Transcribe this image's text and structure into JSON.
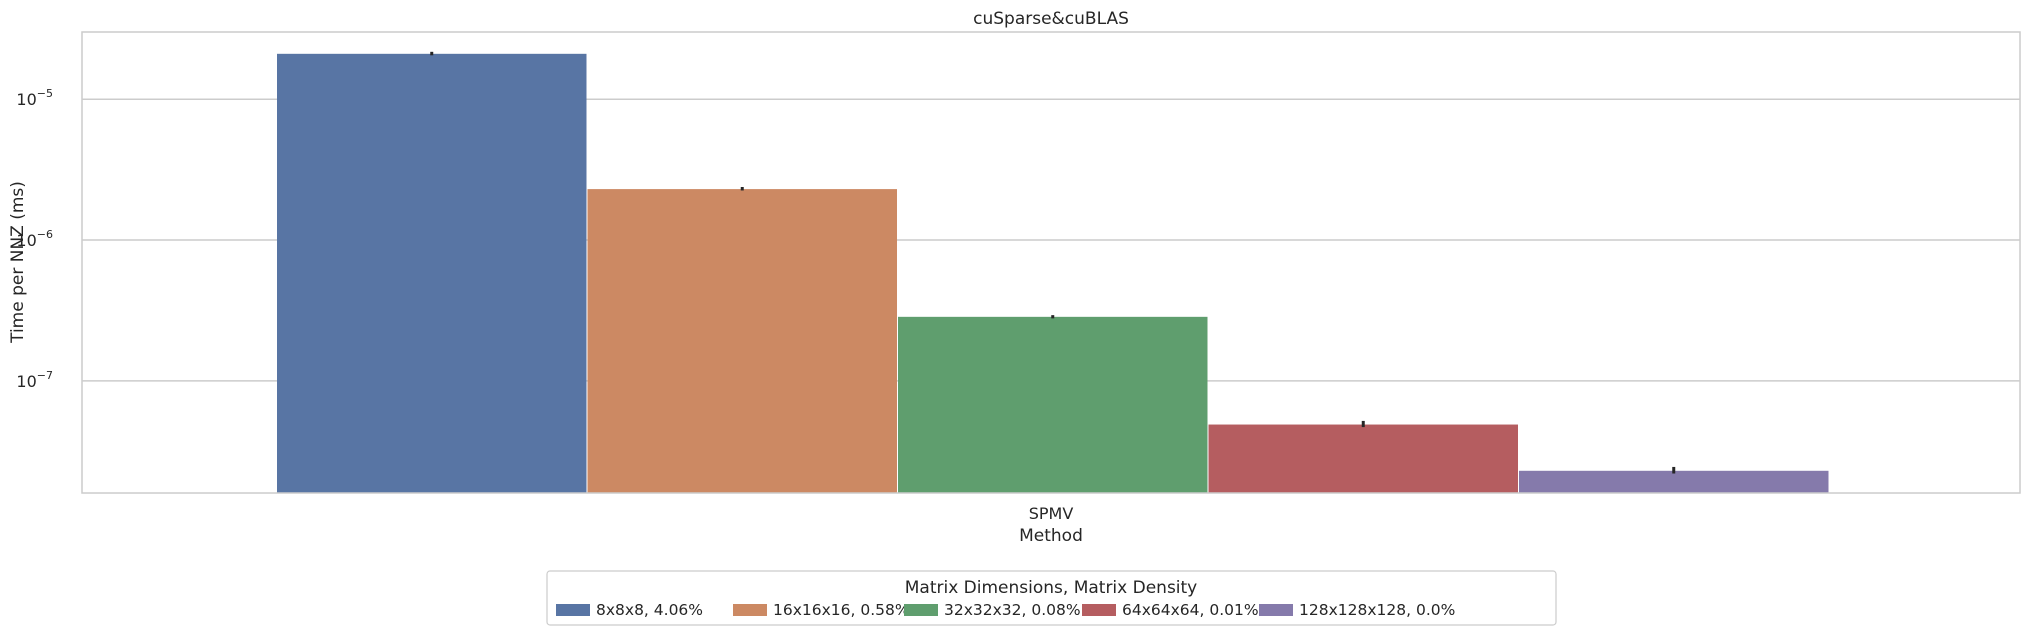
{
  "chart_data": {
    "type": "bar",
    "title": "cuSparse&cuBLAS",
    "xlabel": "Method",
    "ylabel": "Time per NNZ (ms)",
    "categories": [
      "SPMV"
    ],
    "yscale": "log",
    "ylim": [
      1.6e-08,
      3e-05
    ],
    "yticks": [
      {
        "value": 1e-05,
        "base": "10",
        "exp": "−5"
      },
      {
        "value": 1e-06,
        "base": "10",
        "exp": "−6"
      },
      {
        "value": 1e-07,
        "base": "10",
        "exp": "−7"
      }
    ],
    "grid": true,
    "legend": {
      "title": "Matrix Dimensions, Matrix Density",
      "placement": "bottom-center"
    },
    "series": [
      {
        "name": "8x8x8, 4.06%",
        "values": [
          2.1e-05
        ],
        "err": [
          [
            2.05e-05,
            2.17e-05
          ]
        ],
        "color": "#5875a4"
      },
      {
        "name": "16x16x16, 0.58%",
        "values": [
          2.3e-06
        ],
        "err": [
          [
            2.25e-06,
            2.38e-06
          ]
        ],
        "color": "#cc8963"
      },
      {
        "name": "32x32x32, 0.08%",
        "values": [
          2.85e-07
        ],
        "err": [
          [
            2.78e-07,
            2.93e-07
          ]
        ],
        "color": "#5f9e6e"
      },
      {
        "name": "64x64x64, 0.01%",
        "values": [
          4.9e-08
        ],
        "err": [
          [
            4.7e-08,
            5.2e-08
          ]
        ],
        "color": "#b55d60"
      },
      {
        "name": "128x128x128, 0.0%",
        "values": [
          2.3e-08
        ],
        "err": [
          [
            2.2e-08,
            2.45e-08
          ]
        ],
        "color": "#857aab"
      }
    ]
  }
}
